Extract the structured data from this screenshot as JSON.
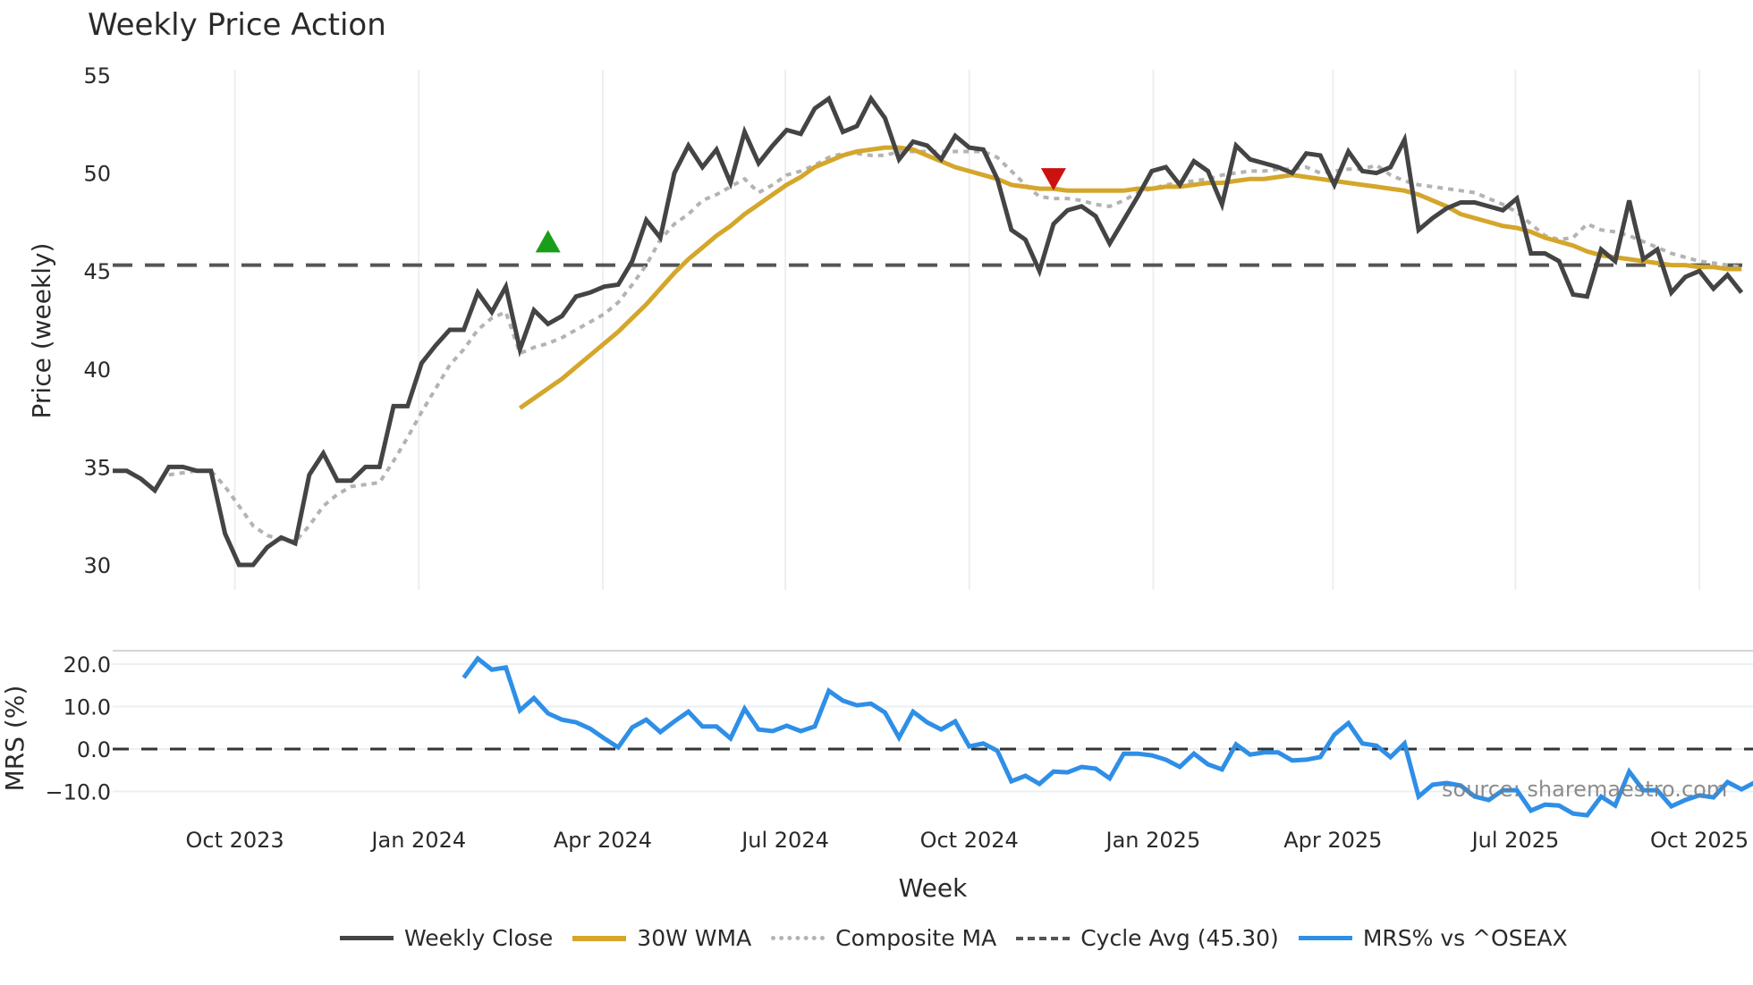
{
  "chart_data": {
    "type": "line",
    "title": "Weekly Price Action",
    "xlabel": "Week",
    "panels": [
      {
        "name": "price",
        "ylabel": "Price (weekly)",
        "ylim": [
          28.8,
          56.2
        ],
        "yticks": [
          30,
          35,
          40,
          45,
          50,
          55
        ],
        "ytick_labels": [
          "30",
          "35",
          "40",
          "45",
          "50",
          "55"
        ]
      },
      {
        "name": "mrs",
        "ylabel": "MRS (%)",
        "ylim": [
          -17.5,
          23
        ],
        "yticks": [
          -10,
          0,
          10,
          20
        ],
        "ytick_labels": [
          "−10.0",
          "0.0",
          "10.0",
          "20.0"
        ]
      }
    ],
    "xtick_labels": [
      "Oct 2023",
      "Jan 2024",
      "Apr 2024",
      "Jul 2024",
      "Oct 2024",
      "Jan 2025",
      "Apr 2025",
      "Jul 2025",
      "Oct 2025"
    ],
    "xtick_week_index": [
      8.7,
      21.8,
      34.9,
      47.9,
      61.0,
      74.1,
      86.9,
      99.9,
      113.0
    ],
    "n_weeks": 117,
    "grid": true,
    "legend_position": "bottom",
    "series": [
      {
        "name": "Weekly Close",
        "panel": "price",
        "color": "#444444",
        "style": "solid",
        "start_index": 0,
        "values": [
          34.8,
          34.8,
          34.4,
          33.8,
          35.0,
          35.0,
          34.8,
          34.8,
          31.6,
          30.0,
          30.0,
          30.9,
          31.4,
          31.1,
          34.6,
          35.7,
          34.3,
          34.3,
          35.0,
          35.0,
          38.1,
          38.1,
          40.3,
          41.2,
          42.0,
          42.0,
          43.9,
          42.9,
          44.2,
          41.0,
          43.0,
          42.3,
          42.7,
          43.7,
          43.9,
          44.2,
          44.3,
          45.5,
          47.6,
          46.7,
          50.0,
          51.4,
          50.3,
          51.2,
          49.5,
          52.1,
          50.5,
          51.4,
          52.2,
          52.0,
          53.3,
          53.8,
          52.1,
          52.4,
          53.8,
          52.8,
          50.7,
          51.6,
          51.4,
          50.7,
          51.9,
          51.3,
          51.2,
          49.7,
          47.1,
          46.6,
          45.0,
          47.4,
          48.1,
          48.3,
          47.8,
          46.4,
          47.6,
          48.8,
          50.1,
          50.3,
          49.4,
          50.6,
          50.1,
          48.4,
          51.4,
          50.7,
          50.5,
          50.3,
          50.0,
          51.0,
          50.9,
          49.4,
          51.1,
          50.1,
          50.0,
          50.3,
          51.7,
          47.1,
          47.7,
          48.2,
          48.5,
          48.5,
          48.3,
          48.1,
          48.7,
          45.9,
          45.9,
          45.5,
          43.8,
          43.7,
          46.1,
          45.5,
          48.6,
          45.6,
          46.1,
          43.9,
          44.7,
          45.0,
          44.1,
          44.8,
          43.9
        ]
      },
      {
        "name": "30W WMA",
        "panel": "price",
        "color": "#D4A62A",
        "style": "solid",
        "start_index": 29,
        "values": [
          38.0,
          38.5,
          39.0,
          39.5,
          40.1,
          40.7,
          41.3,
          41.9,
          42.6,
          43.3,
          44.1,
          44.9,
          45.6,
          46.2,
          46.8,
          47.3,
          47.9,
          48.4,
          48.9,
          49.4,
          49.8,
          50.3,
          50.6,
          50.9,
          51.1,
          51.2,
          51.3,
          51.3,
          51.2,
          50.9,
          50.6,
          50.3,
          50.1,
          49.9,
          49.7,
          49.4,
          49.3,
          49.2,
          49.2,
          49.1,
          49.1,
          49.1,
          49.1,
          49.1,
          49.2,
          49.2,
          49.3,
          49.3,
          49.4,
          49.5,
          49.5,
          49.6,
          49.7,
          49.7,
          49.8,
          49.9,
          49.8,
          49.7,
          49.6,
          49.5,
          49.4,
          49.3,
          49.2,
          49.1,
          48.9,
          48.6,
          48.3,
          47.9,
          47.7,
          47.5,
          47.3,
          47.2,
          47.0,
          46.7,
          46.5,
          46.3,
          46.0,
          45.8,
          45.7,
          45.6,
          45.5,
          45.4,
          45.3,
          45.3,
          45.2,
          45.2,
          45.1,
          45.1
        ]
      },
      {
        "name": "Composite MA",
        "panel": "price",
        "color": "#b3b3b3",
        "style": "dotted",
        "start_index": 4,
        "values": [
          34.6,
          34.7,
          34.8,
          34.8,
          34.0,
          33.0,
          32.0,
          31.5,
          31.3,
          31.2,
          32.0,
          33.0,
          33.6,
          34.0,
          34.1,
          34.2,
          35.3,
          36.5,
          37.8,
          39.0,
          40.2,
          41.0,
          42.0,
          42.6,
          42.9,
          40.8,
          41.1,
          41.3,
          41.6,
          42.0,
          42.4,
          42.8,
          43.4,
          44.3,
          45.3,
          46.6,
          47.4,
          47.9,
          48.6,
          48.9,
          49.3,
          49.7,
          49.0,
          49.4,
          49.9,
          50.1,
          50.4,
          50.8,
          51.0,
          51.0,
          50.9,
          50.9,
          51.1,
          51.1,
          51.1,
          51.1,
          51.1,
          51.1,
          51.1,
          50.8,
          50.1,
          49.4,
          48.8,
          48.7,
          48.7,
          48.6,
          48.4,
          48.3,
          48.6,
          49.0,
          49.2,
          49.4,
          49.5,
          49.6,
          49.7,
          49.9,
          50.0,
          50.1,
          50.1,
          50.2,
          50.2,
          50.3,
          50.0,
          50.1,
          50.2,
          50.2,
          50.4,
          49.9,
          49.6,
          49.4,
          49.3,
          49.2,
          49.1,
          49.0,
          48.7,
          48.4,
          48.0,
          47.4,
          46.8,
          46.6,
          46.7,
          47.4,
          47.1,
          47.0,
          46.8,
          46.5,
          46.2,
          45.9,
          45.7,
          45.5,
          45.4,
          45.3,
          45.2
        ]
      },
      {
        "name": "Cycle Avg (45.30)",
        "panel": "price",
        "color": "#555555",
        "style": "dashed",
        "constant": 45.3
      },
      {
        "name": "MRS% vs ^OSEAX",
        "panel": "mrs",
        "color": "#2F8FE6",
        "style": "solid",
        "start_index": 25,
        "values": [
          16.8,
          21.3,
          18.7,
          19.2,
          9.1,
          12.0,
          8.4,
          6.9,
          6.3,
          4.8,
          2.5,
          0.4,
          5.1,
          6.9,
          4.0,
          6.5,
          8.8,
          5.3,
          5.3,
          2.5,
          9.5,
          4.6,
          4.2,
          5.5,
          4.2,
          5.3,
          13.7,
          11.4,
          10.3,
          10.7,
          8.6,
          2.7,
          8.8,
          6.3,
          4.6,
          6.5,
          0.6,
          1.3,
          -0.4,
          -7.6,
          -6.3,
          -8.2,
          -5.3,
          -5.5,
          -4.2,
          -4.6,
          -6.9,
          -1.1,
          -1.1,
          -1.5,
          -2.5,
          -4.2,
          -1.1,
          -3.6,
          -4.8,
          1.1,
          -1.3,
          -0.8,
          -0.8,
          -2.7,
          -2.5,
          -1.9,
          3.4,
          6.1,
          1.3,
          0.8,
          -1.9,
          1.3,
          -11.2,
          -8.4,
          -8.0,
          -8.6,
          -11.2,
          -12.0,
          -9.7,
          -9.7,
          -14.5,
          -13.1,
          -13.3,
          -15.2,
          -15.6,
          -11.2,
          -13.3,
          -5.3,
          -9.7,
          -9.7,
          -13.5,
          -12.0,
          -10.9,
          -11.4,
          -7.8,
          -9.5,
          -7.8
        ]
      },
      {
        "name": "MRS zero line",
        "panel": "mrs",
        "color": "#333333",
        "style": "dashed",
        "constant": 0
      }
    ],
    "annotations": [
      {
        "type": "buy-signal",
        "shape": "triangle-up",
        "color": "#1a9e1a",
        "week_index": 31,
        "value": 46.5
      },
      {
        "type": "sell-signal",
        "shape": "triangle-down",
        "color": "#cc1111",
        "week_index": 67,
        "value": 49.7
      },
      {
        "type": "watermark",
        "text": "source: sharemaestro.com"
      }
    ]
  },
  "title": "Weekly Price Action",
  "axes": {
    "price_ylabel": "Price (weekly)",
    "mrs_ylabel": "MRS (%)",
    "xlabel": "Week"
  },
  "watermark": "source: sharemaestro.com",
  "legend": [
    {
      "label": "Weekly Close",
      "color": "#444444",
      "style": "solid"
    },
    {
      "label": "30W WMA",
      "color": "#D4A62A",
      "style": "solid"
    },
    {
      "label": "Composite MA",
      "color": "#b3b3b3",
      "style": "dotted"
    },
    {
      "label": "Cycle Avg (45.30)",
      "color": "#555555",
      "style": "dashed"
    },
    {
      "label": "MRS% vs ^OSEAX",
      "color": "#2F8FE6",
      "style": "solid"
    }
  ]
}
